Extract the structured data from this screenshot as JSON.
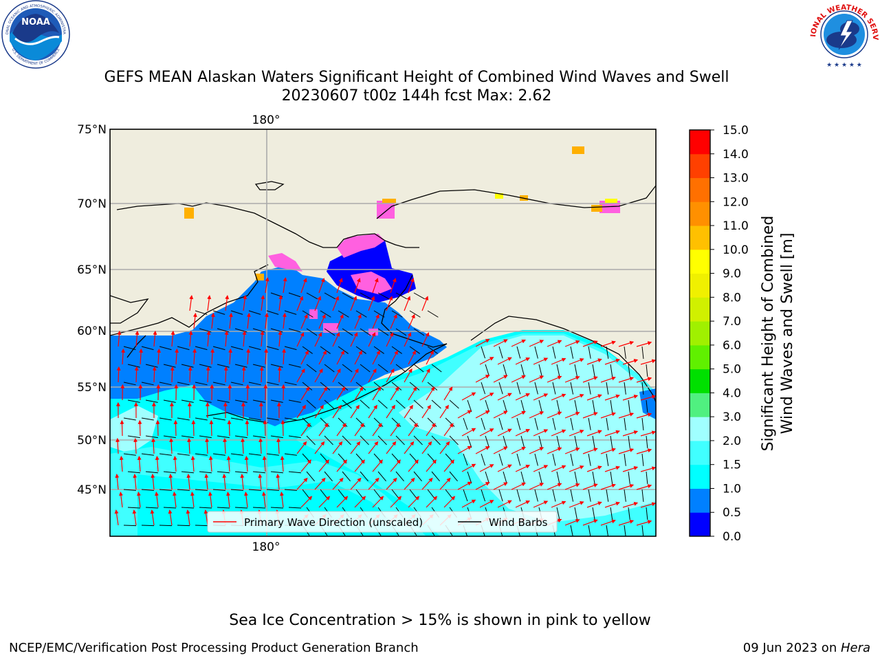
{
  "header": {
    "title_line1": "GEFS MEAN Alaskan Waters Significant Height of Combined Wind Waves and Swell",
    "title_line2": "20230607 t00z 144h fcst   Max: 2.62"
  },
  "logos": {
    "noaa_text": "NOAA",
    "noaa_ring_top": "NATIONAL OCEANIC AND ATMOSPHERIC ADMINISTRATION",
    "noaa_ring_bottom": "U.S. DEPARTMENT OF COMMERCE",
    "nws_ring": "NATIONAL WEATHER SERVICE"
  },
  "map": {
    "lat_labels": [
      "75°N",
      "70°N",
      "65°N",
      "60°N",
      "55°N",
      "50°N",
      "45°N"
    ],
    "lon_label_top": "180°",
    "lon_label_bottom": "180°",
    "legend": {
      "wave_label": "Primary Wave Direction (unscaled)",
      "barb_label": "Wind Barbs"
    },
    "colors": {
      "land": "#efedde",
      "sea_0_5_1": "#0080ff",
      "sea_1_1_5": "#00ffff",
      "sea_1_5_2": "#40ffff",
      "sea_2_3": "#a0ffff",
      "sea_below_0_5": "#0000ff",
      "ice_pink": "#ff60e0",
      "ice_orange": "#ffb000",
      "wave_arrow": "#ff0000",
      "wind_barb": "#000000"
    }
  },
  "colorbar": {
    "title_line1": "Significant Height of Combined",
    "title_line2": "Wind Waves and Swell [m]",
    "ticks": [
      "0.0",
      "0.5",
      "1.0",
      "1.5",
      "2.0",
      "3.0",
      "4.0",
      "5.0",
      "6.0",
      "7.0",
      "8.0",
      "9.0",
      "10.0",
      "11.0",
      "12.0",
      "13.0",
      "14.0",
      "15.0"
    ],
    "colors": [
      "#0000ff",
      "#0080ff",
      "#00ffff",
      "#40ffff",
      "#a0ffff",
      "#50f080",
      "#00e000",
      "#60f000",
      "#a0f000",
      "#d0f000",
      "#f0f000",
      "#ffff00",
      "#ffc000",
      "#ff9000",
      "#ff7000",
      "#ff4000",
      "#ff0000"
    ]
  },
  "footer": {
    "note": "Sea Ice Concentration > 15% is shown in pink to yellow",
    "left": "NCEP/EMC/Verification Post Processing Product Generation Branch",
    "right_prefix": "09 Jun 2023 on ",
    "right_machine": "Hera"
  }
}
